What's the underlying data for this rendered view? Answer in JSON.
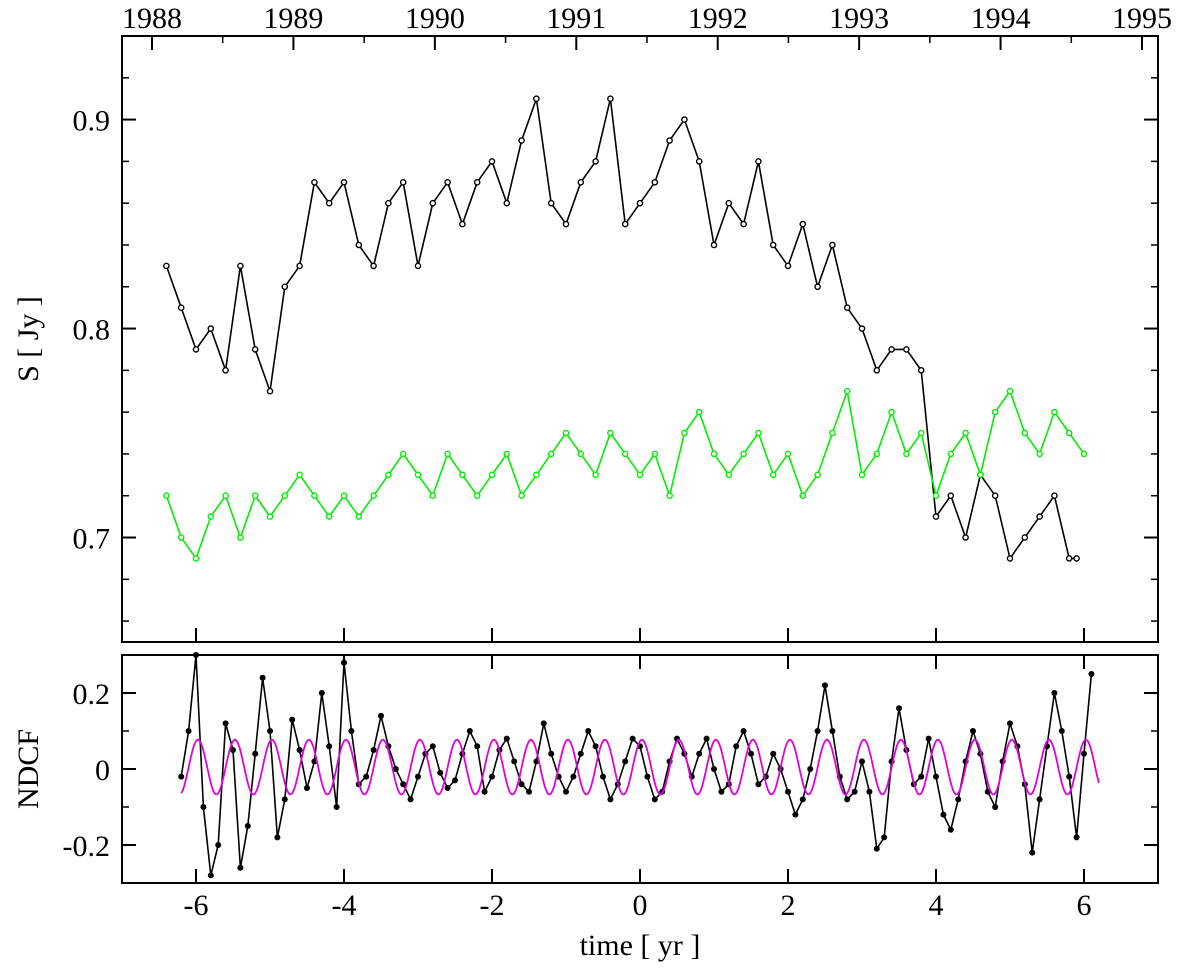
{
  "colors": {
    "axis": "#000000",
    "series_black": "#000000",
    "series_green": "#00ee00",
    "series_magenta": "#e000e0"
  },
  "top_axis": {
    "label": "",
    "tick_labels": [
      "1988",
      "1989",
      "1990",
      "1991",
      "1992",
      "1993",
      "1994",
      "1995"
    ]
  },
  "chart_data": [
    {
      "type": "line",
      "xlabel": "",
      "ylabel": "S [ Jy ]",
      "xlim": [
        -7,
        7
      ],
      "ylim": [
        0.65,
        0.94
      ],
      "x_tick_labels": [],
      "y_tick_labels": [
        "0.7",
        "0.8",
        "0.9"
      ],
      "y_ticks": [
        0.7,
        0.8,
        0.9
      ],
      "x_ticks": [
        -6,
        -4,
        -2,
        0,
        2,
        4,
        6
      ],
      "marker": "open-circle",
      "series": [
        {
          "color": "#000000",
          "x": [
            -6.4,
            -6.2,
            -6.0,
            -5.8,
            -5.6,
            -5.4,
            -5.2,
            -5.0,
            -4.8,
            -4.6,
            -4.4,
            -4.2,
            -4.0,
            -3.8,
            -3.6,
            -3.4,
            -3.2,
            -3.0,
            -2.8,
            -2.6,
            -2.4,
            -2.2,
            -2.0,
            -1.8,
            -1.6,
            -1.4,
            -1.2,
            -1.0,
            -0.8,
            -0.6,
            -0.4,
            -0.2,
            0.0,
            0.2,
            0.4,
            0.6,
            0.8,
            1.0,
            1.2,
            1.4,
            1.6,
            1.8,
            2.0,
            2.2,
            2.4,
            2.6,
            2.8,
            3.0,
            3.2,
            3.4,
            3.6,
            3.8,
            4.0,
            4.2,
            4.4,
            4.6,
            4.8,
            5.0,
            5.2,
            5.4,
            5.6,
            5.8,
            5.9
          ],
          "y": [
            0.83,
            0.81,
            0.79,
            0.8,
            0.78,
            0.83,
            0.79,
            0.77,
            0.82,
            0.83,
            0.87,
            0.86,
            0.87,
            0.84,
            0.83,
            0.86,
            0.87,
            0.83,
            0.86,
            0.87,
            0.85,
            0.87,
            0.88,
            0.86,
            0.89,
            0.91,
            0.86,
            0.85,
            0.87,
            0.88,
            0.91,
            0.85,
            0.86,
            0.87,
            0.89,
            0.9,
            0.88,
            0.84,
            0.86,
            0.85,
            0.88,
            0.84,
            0.83,
            0.85,
            0.82,
            0.84,
            0.81,
            0.8,
            0.78,
            0.79,
            0.79,
            0.78,
            0.71,
            0.72,
            0.7,
            0.73,
            0.72,
            0.69,
            0.7,
            0.71,
            0.72,
            0.69,
            0.69
          ]
        },
        {
          "color": "#00ee00",
          "x": [
            -6.4,
            -6.2,
            -6.0,
            -5.8,
            -5.6,
            -5.4,
            -5.2,
            -5.0,
            -4.8,
            -4.6,
            -4.4,
            -4.2,
            -4.0,
            -3.8,
            -3.6,
            -3.4,
            -3.2,
            -3.0,
            -2.8,
            -2.6,
            -2.4,
            -2.2,
            -2.0,
            -1.8,
            -1.6,
            -1.4,
            -1.2,
            -1.0,
            -0.8,
            -0.6,
            -0.4,
            -0.2,
            0.0,
            0.2,
            0.4,
            0.6,
            0.8,
            1.0,
            1.2,
            1.4,
            1.6,
            1.8,
            2.0,
            2.2,
            2.4,
            2.6,
            2.8,
            3.0,
            3.2,
            3.4,
            3.6,
            3.8,
            4.0,
            4.2,
            4.4,
            4.6,
            4.8,
            5.0,
            5.2,
            5.4,
            5.6,
            5.8,
            6.0
          ],
          "y": [
            0.72,
            0.7,
            0.69,
            0.71,
            0.72,
            0.7,
            0.72,
            0.71,
            0.72,
            0.73,
            0.72,
            0.71,
            0.72,
            0.71,
            0.72,
            0.73,
            0.74,
            0.73,
            0.72,
            0.74,
            0.73,
            0.72,
            0.73,
            0.74,
            0.72,
            0.73,
            0.74,
            0.75,
            0.74,
            0.73,
            0.75,
            0.74,
            0.73,
            0.74,
            0.72,
            0.75,
            0.76,
            0.74,
            0.73,
            0.74,
            0.75,
            0.73,
            0.74,
            0.72,
            0.73,
            0.75,
            0.77,
            0.73,
            0.74,
            0.76,
            0.74,
            0.75,
            0.72,
            0.74,
            0.75,
            0.73,
            0.76,
            0.77,
            0.75,
            0.74,
            0.76,
            0.75,
            0.74
          ]
        }
      ]
    },
    {
      "type": "line",
      "xlabel": "time [ yr ]",
      "ylabel": "NDCF",
      "xlim": [
        -7,
        7
      ],
      "ylim": [
        -0.3,
        0.3
      ],
      "x_tick_labels": [
        "-6",
        "-4",
        "-2",
        "0",
        "2",
        "4",
        "6"
      ],
      "x_ticks": [
        -6,
        -4,
        -2,
        0,
        2,
        4,
        6
      ],
      "y_tick_labels": [
        "-0.2",
        "0",
        "0.2"
      ],
      "y_ticks": [
        -0.2,
        0,
        0.2
      ],
      "series": [
        {
          "color": "#000000",
          "marker": "filled-dot",
          "x": [
            -6.2,
            -6.1,
            -6.0,
            -5.9,
            -5.8,
            -5.7,
            -5.6,
            -5.5,
            -5.4,
            -5.3,
            -5.2,
            -5.1,
            -5.0,
            -4.9,
            -4.8,
            -4.7,
            -4.6,
            -4.5,
            -4.4,
            -4.3,
            -4.2,
            -4.1,
            -4.0,
            -3.9,
            -3.8,
            -3.7,
            -3.6,
            -3.5,
            -3.4,
            -3.3,
            -3.2,
            -3.1,
            -3.0,
            -2.9,
            -2.8,
            -2.7,
            -2.6,
            -2.5,
            -2.4,
            -2.3,
            -2.2,
            -2.1,
            -2.0,
            -1.9,
            -1.8,
            -1.7,
            -1.6,
            -1.5,
            -1.4,
            -1.3,
            -1.2,
            -1.1,
            -1.0,
            -0.9,
            -0.8,
            -0.7,
            -0.6,
            -0.5,
            -0.4,
            -0.3,
            -0.2,
            -0.1,
            0.0,
            0.1,
            0.2,
            0.3,
            0.4,
            0.5,
            0.6,
            0.7,
            0.8,
            0.9,
            1.0,
            1.1,
            1.2,
            1.3,
            1.4,
            1.5,
            1.6,
            1.7,
            1.8,
            1.9,
            2.0,
            2.1,
            2.2,
            2.3,
            2.4,
            2.5,
            2.6,
            2.7,
            2.8,
            2.9,
            3.0,
            3.1,
            3.2,
            3.3,
            3.4,
            3.5,
            3.6,
            3.7,
            3.8,
            3.9,
            4.0,
            4.1,
            4.2,
            4.3,
            4.4,
            4.5,
            4.6,
            4.7,
            4.8,
            4.9,
            5.0,
            5.1,
            5.2,
            5.3,
            5.4,
            5.5,
            5.6,
            5.7,
            5.8,
            5.9,
            6.0,
            6.1
          ],
          "y": [
            -0.02,
            0.1,
            0.3,
            -0.1,
            -0.28,
            -0.2,
            0.12,
            0.05,
            -0.26,
            -0.15,
            0.04,
            0.24,
            0.1,
            -0.18,
            -0.08,
            0.13,
            0.05,
            -0.05,
            0.02,
            0.2,
            0.06,
            -0.1,
            0.28,
            0.1,
            -0.04,
            -0.02,
            0.05,
            0.14,
            0.06,
            0.0,
            -0.04,
            -0.08,
            -0.02,
            0.04,
            0.06,
            -0.01,
            -0.05,
            -0.03,
            0.04,
            0.1,
            0.06,
            -0.06,
            -0.02,
            0.05,
            0.08,
            0.02,
            -0.04,
            -0.06,
            0.02,
            0.12,
            0.04,
            -0.02,
            -0.06,
            -0.02,
            0.04,
            0.1,
            0.06,
            -0.02,
            -0.08,
            -0.04,
            0.02,
            0.08,
            0.06,
            -0.02,
            -0.08,
            -0.06,
            0.02,
            0.08,
            0.04,
            -0.02,
            0.04,
            0.08,
            0.0,
            -0.06,
            -0.04,
            0.06,
            0.1,
            0.04,
            -0.04,
            -0.02,
            0.04,
            0.0,
            -0.06,
            -0.12,
            -0.08,
            0.0,
            0.1,
            0.22,
            0.1,
            -0.02,
            -0.08,
            -0.06,
            0.02,
            -0.06,
            -0.21,
            -0.18,
            0.02,
            0.16,
            0.05,
            -0.04,
            -0.02,
            0.08,
            -0.02,
            -0.12,
            -0.16,
            -0.08,
            0.02,
            0.1,
            0.04,
            -0.06,
            -0.1,
            0.02,
            0.12,
            0.06,
            -0.04,
            -0.22,
            -0.08,
            0.06,
            0.2,
            0.1,
            -0.02,
            -0.18,
            0.04,
            0.25
          ]
        },
        {
          "color": "#e000e0",
          "marker": "none",
          "model": "sine",
          "amplitude": 0.072,
          "offset": 0.005,
          "period_yr": 0.5,
          "x_range": [
            -6.2,
            6.2
          ]
        }
      ]
    }
  ]
}
